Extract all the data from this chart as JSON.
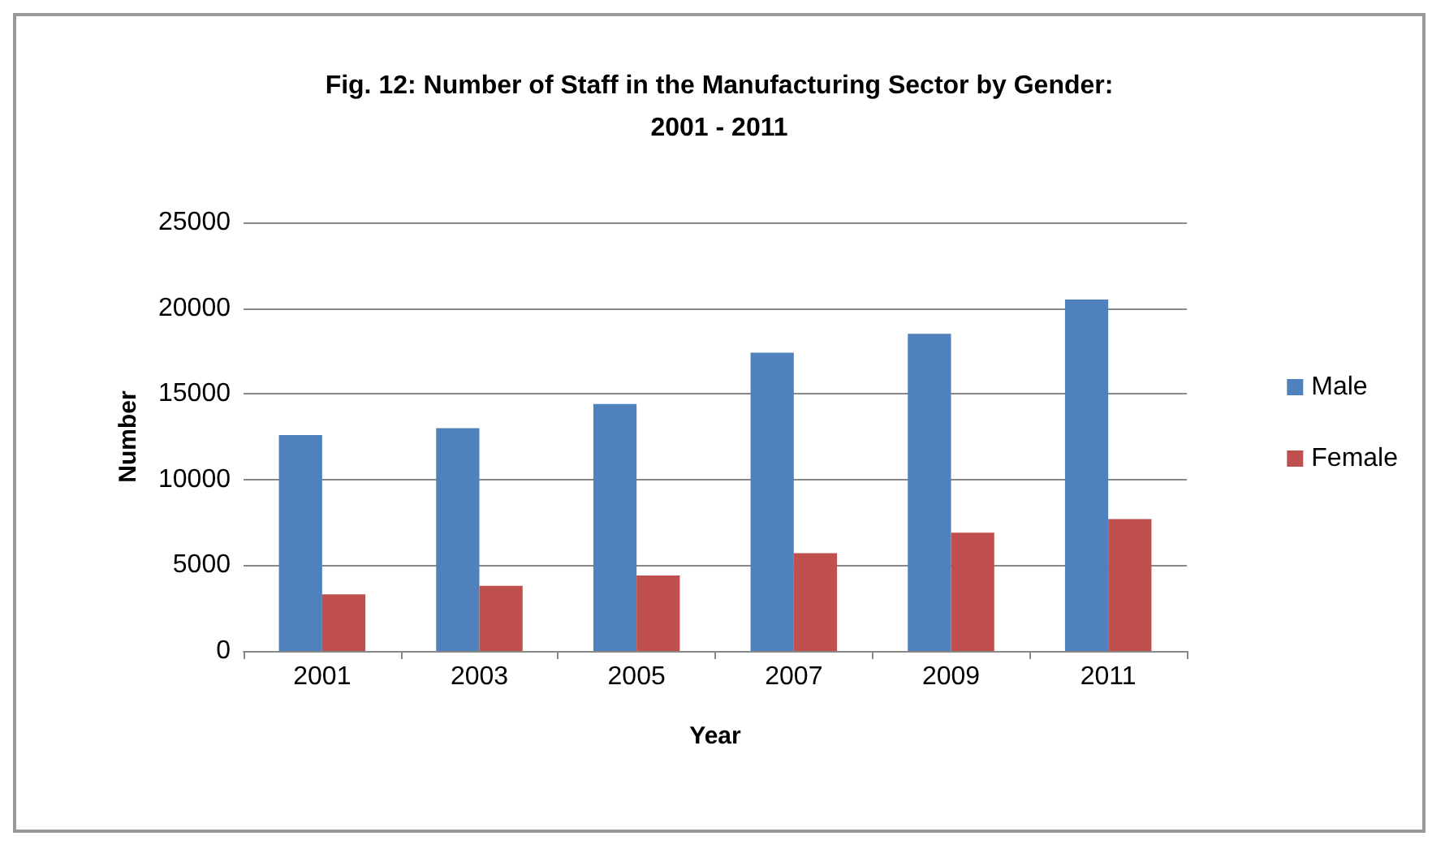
{
  "chart_data": {
    "type": "bar",
    "title": "Fig. 12: Number of Staff in the Manufacturing Sector by Gender:\n2001 - 2011",
    "xlabel": "Year",
    "ylabel": "Number",
    "categories": [
      "2001",
      "2003",
      "2005",
      "2007",
      "2009",
      "2011"
    ],
    "series": [
      {
        "name": "Male",
        "color": "#4f81bd",
        "values": [
          12600,
          13000,
          14400,
          17400,
          18500,
          20500
        ]
      },
      {
        "name": "Female",
        "color": "#c0504d",
        "values": [
          3300,
          3800,
          4400,
          5700,
          6900,
          7700
        ]
      }
    ],
    "ylim": [
      0,
      25000
    ],
    "yticks": [
      0,
      5000,
      10000,
      15000,
      20000,
      25000
    ],
    "grid": "y",
    "legend": "right"
  }
}
